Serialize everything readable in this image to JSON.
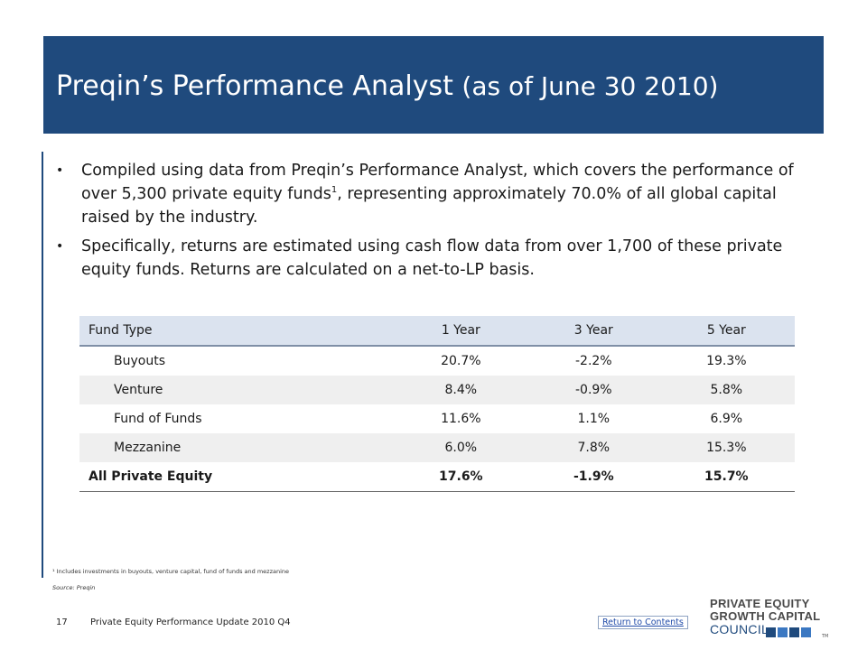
{
  "header": {
    "title_main": "Preqin’s Performance Analyst",
    "title_sub": "(as of June 30 2010)"
  },
  "bullets": [
    {
      "text": "Compiled using data from Preqin’s Performance Analyst, which covers the performance of over 5,300 private equity funds",
      "footnote_mark": "1",
      "text_after": ", representing approximately 70.0% of all global capital raised by the industry."
    },
    {
      "text": "Specifically, returns are estimated using cash flow data from over 1,700 of these private equity funds.  Returns are calculated on a net-to-LP basis."
    }
  ],
  "table": {
    "headers": [
      "Fund Type",
      "1 Year",
      "3 Year",
      "5 Year"
    ],
    "rows": [
      [
        "Buyouts",
        "20.7%",
        "-2.2%",
        "19.3%"
      ],
      [
        "Venture",
        "8.4%",
        "-0.9%",
        "5.8%"
      ],
      [
        "Fund of Funds",
        "11.6%",
        "1.1%",
        "6.9%"
      ],
      [
        "Mezzanine",
        "6.0%",
        "7.8%",
        "15.3%"
      ]
    ],
    "total": [
      "All Private Equity",
      "17.6%",
      "-1.9%",
      "15.7%"
    ]
  },
  "footnote": "¹ Includes investments in buyouts, venture capital, fund of funds and mezzanine",
  "source": "Source: Preqin",
  "footer": {
    "page_number": "17",
    "report_title": "Private Equity Performance Update 2010 Q4",
    "return_link": "Return to Contents"
  },
  "logo": {
    "line1": "PRIVATE EQUITY",
    "line2": "GROWTH CAPITAL",
    "line3": "COUNCIL",
    "tm": "TM"
  },
  "colors": {
    "brand_blue": "#1f4a7d",
    "header_row": "#dbe3ef",
    "shaded_row": "#efefef"
  }
}
